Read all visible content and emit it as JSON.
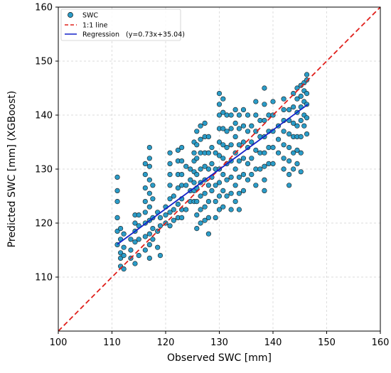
{
  "chart_data": {
    "type": "scatter",
    "title": "",
    "xlabel": "Observed SWC [mm]",
    "ylabel": "Predicted SWC [mm] (XGBoost)",
    "xlim": [
      100,
      160
    ],
    "ylim": [
      100,
      160
    ],
    "x_ticks": [
      "100",
      "110",
      "120",
      "130",
      "140",
      "150",
      "160"
    ],
    "y_ticks": [
      "110",
      "120",
      "130",
      "140",
      "150",
      "160"
    ],
    "grid": true,
    "legend_position": "top-left",
    "series": [
      {
        "name": "SWC",
        "kind": "points",
        "color": "#2a9cc8",
        "edge_color": "#1a1a1a",
        "points": [
          [
            111.0,
            116.0
          ],
          [
            111.0,
            118.5
          ],
          [
            111.0,
            121.0
          ],
          [
            111.0,
            124.0
          ],
          [
            111.0,
            126.0
          ],
          [
            111.0,
            128.5
          ],
          [
            111.6,
            112.0
          ],
          [
            111.6,
            113.5
          ],
          [
            111.6,
            114.5
          ],
          [
            111.6,
            117.0
          ],
          [
            111.6,
            119.0
          ],
          [
            112.2,
            111.5
          ],
          [
            112.2,
            114.0
          ],
          [
            112.2,
            115.5
          ],
          [
            112.2,
            118.0
          ],
          [
            113.5,
            113.5
          ],
          [
            113.5,
            115.0
          ],
          [
            113.5,
            117.0
          ],
          [
            114.3,
            112.5
          ],
          [
            114.3,
            116.5
          ],
          [
            114.3,
            118.5
          ],
          [
            114.3,
            120.0
          ],
          [
            114.3,
            121.5
          ],
          [
            115.0,
            114.0
          ],
          [
            115.0,
            117.0
          ],
          [
            115.0,
            119.5
          ],
          [
            115.0,
            121.5
          ],
          [
            116.2,
            115.0
          ],
          [
            116.2,
            117.5
          ],
          [
            116.2,
            120.0
          ],
          [
            116.2,
            122.0
          ],
          [
            116.2,
            124.0
          ],
          [
            116.2,
            126.5
          ],
          [
            116.2,
            129.0
          ],
          [
            116.2,
            131.0
          ],
          [
            117.0,
            113.5
          ],
          [
            117.0,
            116.0
          ],
          [
            117.0,
            118.0
          ],
          [
            117.0,
            120.5
          ],
          [
            117.0,
            123.0
          ],
          [
            117.0,
            125.5
          ],
          [
            117.0,
            128.0
          ],
          [
            117.0,
            130.5
          ],
          [
            117.0,
            132.0
          ],
          [
            117.0,
            134.0
          ],
          [
            117.6,
            117.0
          ],
          [
            117.6,
            119.0
          ],
          [
            117.6,
            121.0
          ],
          [
            117.6,
            124.5
          ],
          [
            117.6,
            127.0
          ],
          [
            118.5,
            115.5
          ],
          [
            118.5,
            118.5
          ],
          [
            118.5,
            122.0
          ],
          [
            119.0,
            114.0
          ],
          [
            119.0,
            119.5
          ],
          [
            119.0,
            121.0
          ],
          [
            120.0,
            120.0
          ],
          [
            120.0,
            121.5
          ],
          [
            120.0,
            123.0
          ],
          [
            120.8,
            119.5
          ],
          [
            120.8,
            122.0
          ],
          [
            120.8,
            124.5
          ],
          [
            120.8,
            127.0
          ],
          [
            120.8,
            129.0
          ],
          [
            120.8,
            131.0
          ],
          [
            120.8,
            133.0
          ],
          [
            121.5,
            120.5
          ],
          [
            121.5,
            122.5
          ],
          [
            121.5,
            125.0
          ],
          [
            122.3,
            121.0
          ],
          [
            122.3,
            123.5
          ],
          [
            122.3,
            126.5
          ],
          [
            122.3,
            129.0
          ],
          [
            122.3,
            131.5
          ],
          [
            122.3,
            133.5
          ],
          [
            123.0,
            121.0
          ],
          [
            123.0,
            122.5
          ],
          [
            123.0,
            124.5
          ],
          [
            123.0,
            127.0
          ],
          [
            123.0,
            129.0
          ],
          [
            123.0,
            131.5
          ],
          [
            123.0,
            134.0
          ],
          [
            123.8,
            122.5
          ],
          [
            123.8,
            127.0
          ],
          [
            123.8,
            130.5
          ],
          [
            124.6,
            124.0
          ],
          [
            124.6,
            126.0
          ],
          [
            124.6,
            128.0
          ],
          [
            124.6,
            130.0
          ],
          [
            125.3,
            124.0
          ],
          [
            125.3,
            126.0
          ],
          [
            125.3,
            127.5
          ],
          [
            125.3,
            129.5
          ],
          [
            125.3,
            131.5
          ],
          [
            125.3,
            133.0
          ],
          [
            125.3,
            135.0
          ],
          [
            125.8,
            119.0
          ],
          [
            125.8,
            121.5
          ],
          [
            125.8,
            124.0
          ],
          [
            125.8,
            126.5
          ],
          [
            125.8,
            129.0
          ],
          [
            125.8,
            132.0
          ],
          [
            125.8,
            134.5
          ],
          [
            125.8,
            137.0
          ],
          [
            126.5,
            120.0
          ],
          [
            126.5,
            122.5
          ],
          [
            126.5,
            125.0
          ],
          [
            126.5,
            127.5
          ],
          [
            126.5,
            130.0
          ],
          [
            126.5,
            133.0
          ],
          [
            126.5,
            135.5
          ],
          [
            126.5,
            138.0
          ],
          [
            127.3,
            120.5
          ],
          [
            127.3,
            123.0
          ],
          [
            127.3,
            125.5
          ],
          [
            127.3,
            128.0
          ],
          [
            127.3,
            130.5
          ],
          [
            127.3,
            133.0
          ],
          [
            127.3,
            136.0
          ],
          [
            127.3,
            138.5
          ],
          [
            128.0,
            118.0
          ],
          [
            128.0,
            121.0
          ],
          [
            128.0,
            124.0
          ],
          [
            128.0,
            127.0
          ],
          [
            128.0,
            130.0
          ],
          [
            128.0,
            133.0
          ],
          [
            128.0,
            136.0
          ],
          [
            128.6,
            126.0
          ],
          [
            128.6,
            128.5
          ],
          [
            128.6,
            131.0
          ],
          [
            128.6,
            134.0
          ],
          [
            129.3,
            121.0
          ],
          [
            129.3,
            124.0
          ],
          [
            129.3,
            127.0
          ],
          [
            129.3,
            130.0
          ],
          [
            129.3,
            133.0
          ],
          [
            130.0,
            122.5
          ],
          [
            130.0,
            125.0
          ],
          [
            130.0,
            127.5
          ],
          [
            130.0,
            130.0
          ],
          [
            130.0,
            132.5
          ],
          [
            130.0,
            135.0
          ],
          [
            130.0,
            137.5
          ],
          [
            130.0,
            140.0
          ],
          [
            130.0,
            142.0
          ],
          [
            130.0,
            144.0
          ],
          [
            130.7,
            123.0
          ],
          [
            130.7,
            126.0
          ],
          [
            130.7,
            129.0
          ],
          [
            130.7,
            132.0
          ],
          [
            130.7,
            134.5
          ],
          [
            130.7,
            137.5
          ],
          [
            130.7,
            140.5
          ],
          [
            130.7,
            143.0
          ],
          [
            131.4,
            125.0
          ],
          [
            131.4,
            128.0
          ],
          [
            131.4,
            131.0
          ],
          [
            131.4,
            134.0
          ],
          [
            131.4,
            137.0
          ],
          [
            131.4,
            140.0
          ],
          [
            132.2,
            122.5
          ],
          [
            132.2,
            125.5
          ],
          [
            132.2,
            128.5
          ],
          [
            132.2,
            131.5
          ],
          [
            132.2,
            134.5
          ],
          [
            132.2,
            137.5
          ],
          [
            132.2,
            140.0
          ],
          [
            133.0,
            124.0
          ],
          [
            133.0,
            127.0
          ],
          [
            133.0,
            130.0
          ],
          [
            133.0,
            133.0
          ],
          [
            133.0,
            136.0
          ],
          [
            133.0,
            138.5
          ],
          [
            133.0,
            141.0
          ],
          [
            133.7,
            122.5
          ],
          [
            133.7,
            125.5
          ],
          [
            133.7,
            128.5
          ],
          [
            133.7,
            131.5
          ],
          [
            133.7,
            134.5
          ],
          [
            133.7,
            137.5
          ],
          [
            133.7,
            140.0
          ],
          [
            134.5,
            126.0
          ],
          [
            134.5,
            129.0
          ],
          [
            134.5,
            132.0
          ],
          [
            134.5,
            135.0
          ],
          [
            134.5,
            138.0
          ],
          [
            134.5,
            141.0
          ],
          [
            135.3,
            128.0
          ],
          [
            135.3,
            131.0
          ],
          [
            135.3,
            134.0
          ],
          [
            135.3,
            137.0
          ],
          [
            135.3,
            140.0
          ],
          [
            136.0,
            129.0
          ],
          [
            136.0,
            132.0
          ],
          [
            136.0,
            135.0
          ],
          [
            136.0,
            138.0
          ],
          [
            136.8,
            127.0
          ],
          [
            136.8,
            130.0
          ],
          [
            136.8,
            133.5
          ],
          [
            136.8,
            137.0
          ],
          [
            136.8,
            140.0
          ],
          [
            136.8,
            142.5
          ],
          [
            137.6,
            130.0
          ],
          [
            137.6,
            133.0
          ],
          [
            137.6,
            136.0
          ],
          [
            137.6,
            139.0
          ],
          [
            138.4,
            126.0
          ],
          [
            138.4,
            128.0
          ],
          [
            138.4,
            130.5
          ],
          [
            138.4,
            133.0
          ],
          [
            138.4,
            136.0
          ],
          [
            138.4,
            139.0
          ],
          [
            138.4,
            142.0
          ],
          [
            138.4,
            145.0
          ],
          [
            139.2,
            131.0
          ],
          [
            139.2,
            134.0
          ],
          [
            139.2,
            137.0
          ],
          [
            139.2,
            140.0
          ],
          [
            140.0,
            131.0
          ],
          [
            140.0,
            134.0
          ],
          [
            140.0,
            137.0
          ],
          [
            140.0,
            140.0
          ],
          [
            140.0,
            142.5
          ],
          [
            141.0,
            133.0
          ],
          [
            141.0,
            135.5
          ],
          [
            141.0,
            138.0
          ],
          [
            142.0,
            130.0
          ],
          [
            142.0,
            132.0
          ],
          [
            142.0,
            134.5
          ],
          [
            142.0,
            137.0
          ],
          [
            142.0,
            139.0
          ],
          [
            142.0,
            141.0
          ],
          [
            142.0,
            143.0
          ],
          [
            143.0,
            127.0
          ],
          [
            143.0,
            129.0
          ],
          [
            143.0,
            131.5
          ],
          [
            143.0,
            134.0
          ],
          [
            143.0,
            136.5
          ],
          [
            143.0,
            139.0
          ],
          [
            143.0,
            141.0
          ],
          [
            143.8,
            130.0
          ],
          [
            143.8,
            133.0
          ],
          [
            143.8,
            136.0
          ],
          [
            143.8,
            138.5
          ],
          [
            143.8,
            141.5
          ],
          [
            143.8,
            144.0
          ],
          [
            144.5,
            131.0
          ],
          [
            144.5,
            133.5
          ],
          [
            144.5,
            136.0
          ],
          [
            144.5,
            138.0
          ],
          [
            144.5,
            140.5
          ],
          [
            144.5,
            143.0
          ],
          [
            144.5,
            145.0
          ],
          [
            145.2,
            129.5
          ],
          [
            145.2,
            133.0
          ],
          [
            145.2,
            136.0
          ],
          [
            145.2,
            139.0
          ],
          [
            145.2,
            141.5
          ],
          [
            145.2,
            143.5
          ],
          [
            145.2,
            145.5
          ],
          [
            145.8,
            138.0
          ],
          [
            145.8,
            140.0
          ],
          [
            145.8,
            142.5
          ],
          [
            145.8,
            144.5
          ],
          [
            145.8,
            146.0
          ],
          [
            146.3,
            136.5
          ],
          [
            146.3,
            139.5
          ],
          [
            146.3,
            142.0
          ],
          [
            146.3,
            144.0
          ],
          [
            146.3,
            146.5
          ],
          [
            146.3,
            147.5
          ]
        ]
      },
      {
        "name": "1:1 line",
        "kind": "line",
        "color": "#e0201c",
        "dash": "dashed",
        "x": [
          100,
          160
        ],
        "y": [
          100,
          160
        ]
      },
      {
        "name": "Regression   (y=0.73x+35.04)",
        "kind": "line",
        "color": "#1421c8",
        "dash": "solid",
        "slope": 0.73,
        "intercept": 35.04,
        "x": [
          111,
          146.5
        ]
      }
    ]
  }
}
